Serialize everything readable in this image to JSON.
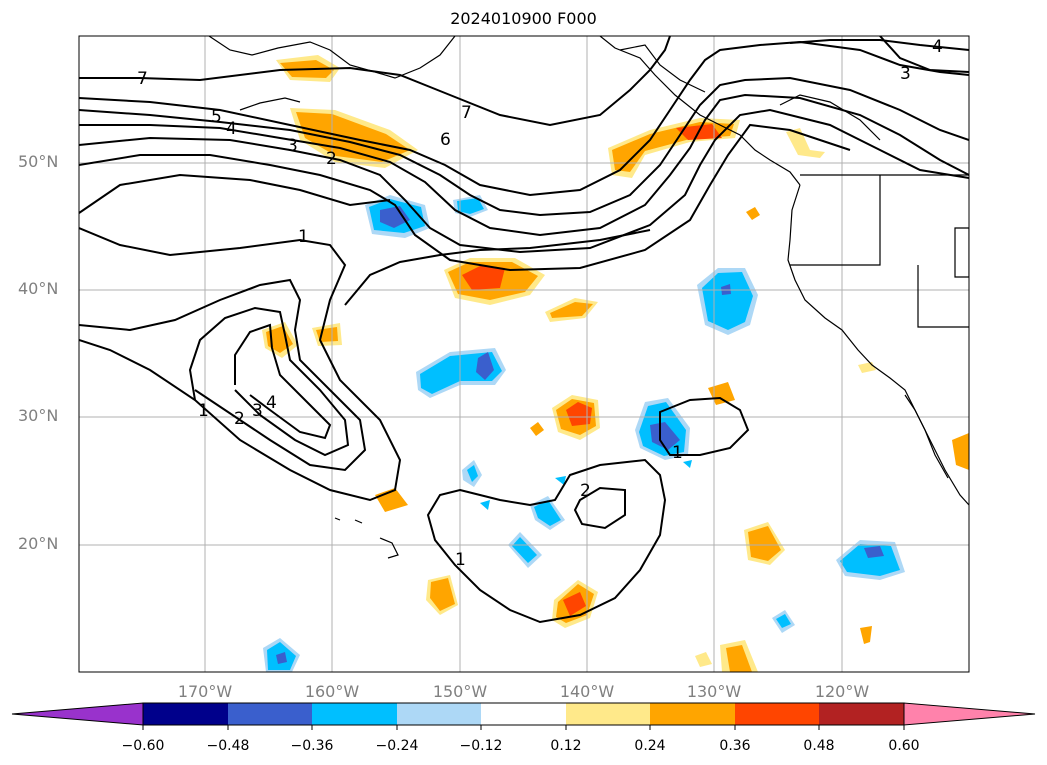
{
  "title": "2024010900 F000",
  "lat_labels": [
    "50°N",
    "40°N",
    "30°N",
    "20°N"
  ],
  "lon_labels": [
    "170°W",
    "160°W",
    "150°W",
    "140°W",
    "130°W",
    "120°W"
  ],
  "colorbar": {
    "ticks": [
      "−0.60",
      "−0.48",
      "−0.36",
      "−0.24",
      "−0.12",
      "0.12",
      "0.24",
      "0.36",
      "0.48",
      "0.60"
    ],
    "colors": [
      "#9932cc",
      "#00008b",
      "#3a5fcd",
      "#00bfff",
      "#add8f6",
      "#ffffff",
      "#ffe98a",
      "#ffa500",
      "#ff4500",
      "#b22222",
      "#ff82ab"
    ]
  },
  "contour_labels": [
    "7",
    "5",
    "4",
    "3",
    "2",
    "1",
    "6",
    "7",
    "3",
    "4",
    "1",
    "2",
    "3",
    "4",
    "2",
    "1",
    "1"
  ],
  "colors": {
    "warm_light": "#ffe98a",
    "warm": "#ffa500",
    "hot": "#ff4500",
    "cool_light": "#add8f6",
    "cool": "#00bfff",
    "cold": "#3a5fcd"
  }
}
